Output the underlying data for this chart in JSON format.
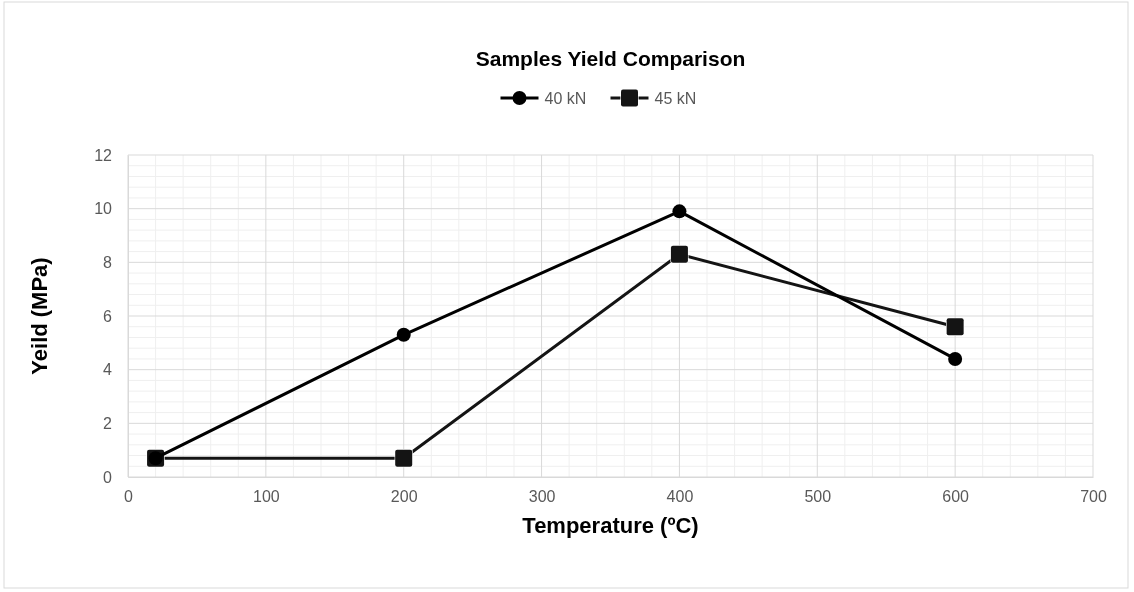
{
  "chart_data": {
    "type": "line",
    "title": "Samples Yield Comparison",
    "xlabel": "Temperature (ºC)",
    "ylabel": "Yeild (MPa)",
    "x": [
      20,
      200,
      400,
      600
    ],
    "series": [
      {
        "name": "40 kN",
        "color": "#000000",
        "marker": "circle",
        "values": [
          0.7,
          5.3,
          9.9,
          4.4
        ]
      },
      {
        "name": "45 kN",
        "color": "#141414",
        "marker": "square",
        "values": [
          0.7,
          0.7,
          8.3,
          5.6
        ]
      }
    ],
    "xlim": [
      0,
      700
    ],
    "xticks": [
      0,
      100,
      200,
      300,
      400,
      500,
      600,
      700
    ],
    "ylim": [
      0,
      12
    ],
    "yticks": [
      0,
      2,
      4,
      6,
      8,
      10,
      12
    ],
    "grid": true,
    "legend": "top",
    "line_style": "solid"
  }
}
